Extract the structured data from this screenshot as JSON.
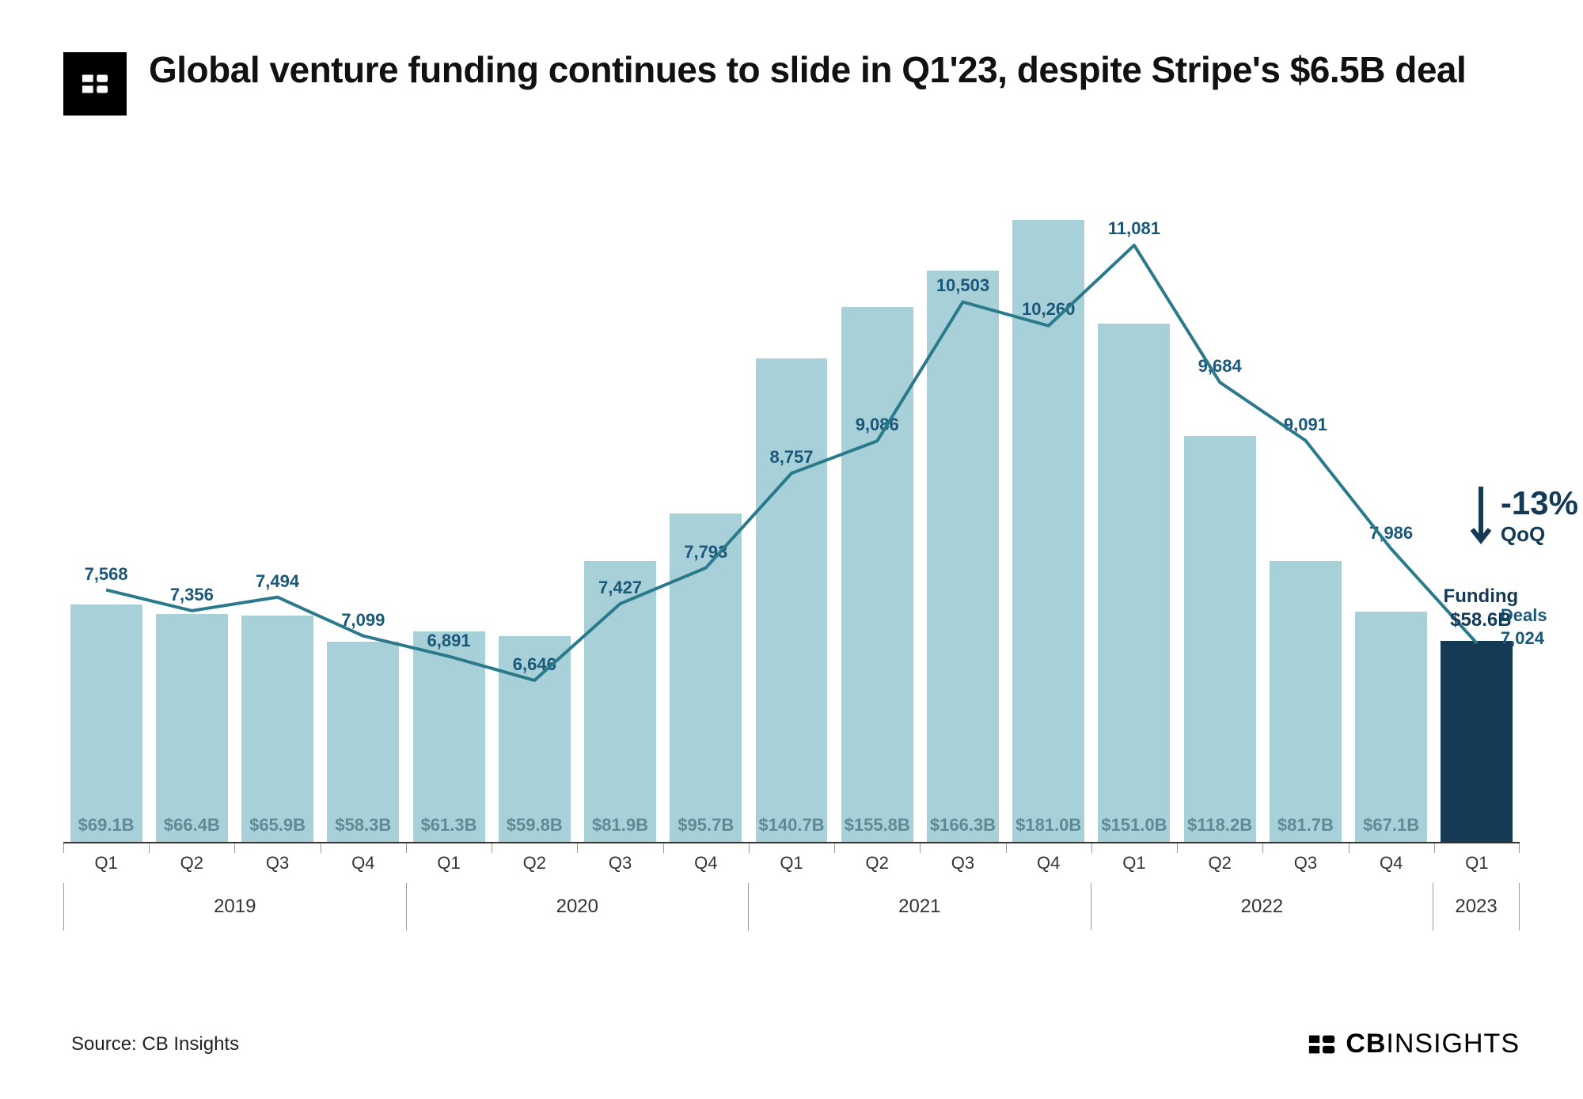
{
  "title": "Global venture funding continues to slide in Q1'23, despite Stripe's $6.5B deal",
  "source": "Source: CB Insights",
  "brand": {
    "bold": "CB",
    "light": "INSIGHTS"
  },
  "chart": {
    "type": "bar+line",
    "bar_color": "#a8d0d8",
    "bar_highlight_color": "#153a56",
    "line_color": "#2a7a8c",
    "line_width": 4,
    "axis_color": "#333333",
    "funding_value_color": "#5e8a96",
    "deal_label_color": "#1a587a",
    "background": "#ffffff",
    "funding_max": 200,
    "deals_min": 5000,
    "deals_max": 12000,
    "quarters": [
      "Q1",
      "Q2",
      "Q3",
      "Q4",
      "Q1",
      "Q2",
      "Q3",
      "Q4",
      "Q1",
      "Q2",
      "Q3",
      "Q4",
      "Q1",
      "Q2",
      "Q3",
      "Q4",
      "Q1"
    ],
    "year_groups": [
      {
        "label": "2019",
        "span": 4
      },
      {
        "label": "2020",
        "span": 4
      },
      {
        "label": "2021",
        "span": 4
      },
      {
        "label": "2022",
        "span": 4
      },
      {
        "label": "2023",
        "span": 1
      }
    ],
    "funding": [
      69.1,
      66.4,
      65.9,
      58.3,
      61.3,
      59.8,
      81.9,
      95.7,
      140.7,
      155.8,
      166.3,
      181.0,
      151.0,
      118.2,
      81.7,
      67.1,
      58.6
    ],
    "funding_labels": [
      "$69.1B",
      "$66.4B",
      "$65.9B",
      "$58.3B",
      "$61.3B",
      "$59.8B",
      "$81.9B",
      "$95.7B",
      "$140.7B",
      "$155.8B",
      "$166.3B",
      "$181.0B",
      "$151.0B",
      "$118.2B",
      "$81.7B",
      "$67.1B",
      "$58.6B"
    ],
    "deals": [
      7568,
      7356,
      7494,
      7099,
      6891,
      6646,
      7427,
      7793,
      8757,
      9086,
      10503,
      10260,
      11081,
      9684,
      9091,
      7986,
      7024
    ],
    "deal_labels": [
      "7,568",
      "7,356",
      "7,494",
      "7,099",
      "6,891",
      "6,646",
      "7,427",
      "7,793",
      "8,757",
      "9,086",
      "10,503",
      "10,260",
      "11,081",
      "9,684",
      "9,091",
      "7,986",
      "7,024"
    ],
    "highlight_index": 16,
    "deals_end": {
      "label_top": "Deals",
      "label_val": "7,024"
    },
    "funding_end": {
      "label_top": "Funding",
      "label_val": "$58.6B"
    },
    "qoq": {
      "pct": "-13%",
      "label": "QoQ"
    }
  }
}
